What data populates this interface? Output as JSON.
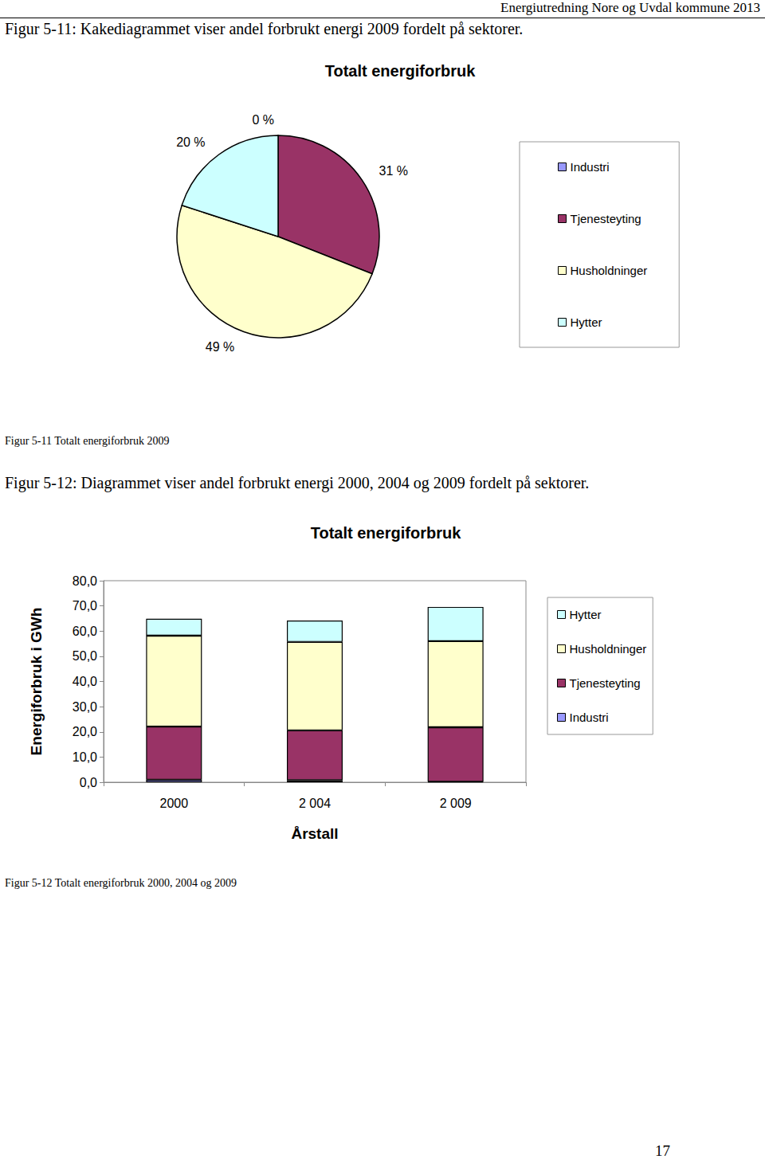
{
  "header": "Energiutredning Nore og Uvdal kommune 2013",
  "figure_texts": [
    {
      "intro": "Figur 5-11: Kakediagrammet viser andel forbrukt energi 2009 fordelt på sektorer.",
      "caption": "Figur 5-11 Totalt energiforbruk 2009"
    },
    {
      "intro": "Figur 5-12: Diagrammet viser andel forbrukt energi 2000, 2004 og 2009 fordelt på sektorer.",
      "caption": "Figur 5-12 Totalt energiforbruk 2000, 2004 og 2009"
    }
  ],
  "page_number": "17",
  "chart_data": [
    {
      "type": "pie",
      "title": "Totalt energiforbruk",
      "categories": [
        "Industri",
        "Tjenesteyting",
        "Husholdninger",
        "Hytter"
      ],
      "values": [
        0,
        31,
        49,
        20
      ],
      "value_labels": [
        "0 %",
        "31 %",
        "49 %",
        "20 %"
      ],
      "colors": [
        "#9999ff",
        "#993366",
        "#ffffcc",
        "#ccffff"
      ],
      "data_labels": true,
      "legend": "right"
    },
    {
      "type": "bar",
      "title": "Totalt energiforbruk",
      "x_label": "Årstall",
      "y_label": "Energiforbruk i GWh",
      "categories": [
        "2000",
        "2 004",
        "2 009"
      ],
      "stacked": true,
      "grid": false,
      "legend": "right",
      "series": [
        {
          "name": "Industri",
          "color": "#9999ff",
          "values": [
            1.0,
            0.8,
            0.2
          ]
        },
        {
          "name": "Tjenesteyting",
          "color": "#993366",
          "values": [
            21.1,
            19.8,
            21.6
          ]
        },
        {
          "name": "Husholdninger",
          "color": "#ffffcc",
          "values": [
            36.1,
            35.1,
            34.2
          ]
        },
        {
          "name": "Hytter",
          "color": "#ccffff",
          "values": [
            6.7,
            8.5,
            13.6
          ]
        }
      ],
      "ylim": [
        0,
        80
      ],
      "yticks": [
        {
          "value": 0,
          "label": "0,0"
        },
        {
          "value": 10,
          "label": "10,0"
        },
        {
          "value": 20,
          "label": "20,0"
        },
        {
          "value": 30,
          "label": "30,0"
        },
        {
          "value": 40,
          "label": "40,0"
        },
        {
          "value": 50,
          "label": "50,0"
        },
        {
          "value": 60,
          "label": "60,0"
        },
        {
          "value": 70,
          "label": "70,0"
        },
        {
          "value": 80,
          "label": "80,0"
        }
      ]
    }
  ]
}
